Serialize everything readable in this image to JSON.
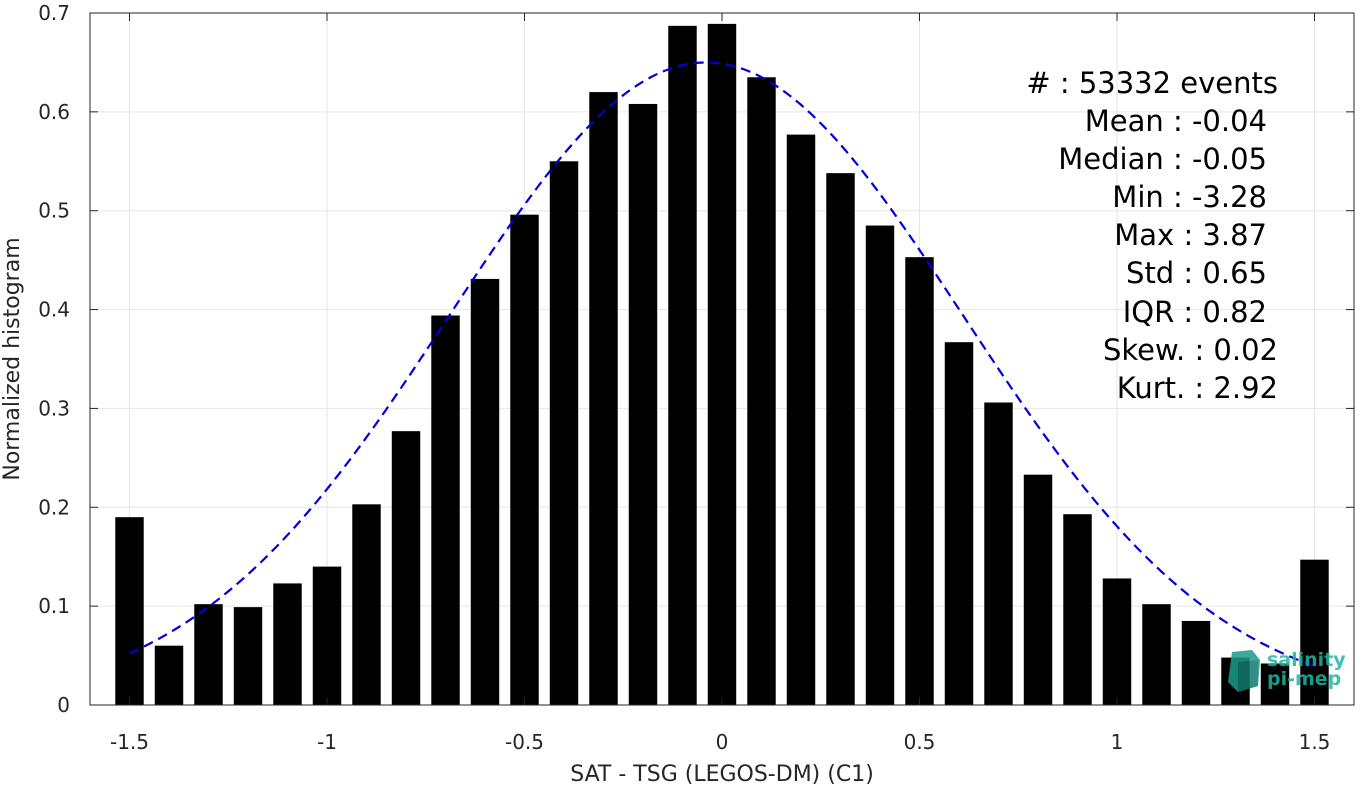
{
  "chart_data": {
    "type": "bar",
    "xlabel": "SAT - TSG (LEGOS-DM) (C1)",
    "ylabel": "Normalized histogram",
    "xlim": [
      -1.6,
      1.6
    ],
    "ylim": [
      0,
      0.7
    ],
    "xticks": [
      -1.5,
      -1,
      -0.5,
      0,
      0.5,
      1,
      1.5
    ],
    "xtick_labels": [
      "-1.5",
      "-1",
      "-0.5",
      "0",
      "0.5",
      "1",
      "1.5"
    ],
    "yticks": [
      0,
      0.1,
      0.2,
      0.3,
      0.4,
      0.5,
      0.6,
      0.7
    ],
    "ytick_labels": [
      "0",
      "0.1",
      "0.2",
      "0.3",
      "0.4",
      "0.5",
      "0.6",
      "0.7"
    ],
    "grid": true,
    "bar_color": "#000000",
    "bins": [
      -1.5,
      -1.4,
      -1.3,
      -1.2,
      -1.1,
      -1.0,
      -0.9,
      -0.8,
      -0.7,
      -0.6,
      -0.5,
      -0.4,
      -0.3,
      -0.2,
      -0.1,
      0.0,
      0.1,
      0.2,
      0.3,
      0.4,
      0.5,
      0.6,
      0.7,
      0.8,
      0.9,
      1.0,
      1.1,
      1.2,
      1.3,
      1.4,
      1.5
    ],
    "values": [
      0.19,
      0.06,
      0.102,
      0.099,
      0.123,
      0.14,
      0.203,
      0.277,
      0.394,
      0.431,
      0.496,
      0.55,
      0.62,
      0.608,
      0.687,
      0.689,
      0.635,
      0.577,
      0.538,
      0.485,
      0.453,
      0.367,
      0.306,
      0.233,
      0.193,
      0.128,
      0.102,
      0.085,
      0.048,
      0.042,
      0.147
    ],
    "fit": {
      "type": "gaussian",
      "color": "#0000dd",
      "style": "dashed",
      "mean": -0.04,
      "std": 0.65,
      "peak": 0.65,
      "x_range": [
        -1.5,
        1.5
      ]
    }
  },
  "stats": {
    "events": "#  : 53332 events",
    "mean": "Mean : -0.04",
    "median": "Median : -0.05",
    "min": "Min : -3.28",
    "max": "Max : 3.87",
    "std": "Std : 0.65",
    "iqr": "IQR : 0.82",
    "skew": "Skew. : 0.02",
    "kurt": "Kurt. : 2.92"
  },
  "logo": {
    "line1": "salinity",
    "line2": "pi-mep",
    "color": "#1fb5a0"
  }
}
